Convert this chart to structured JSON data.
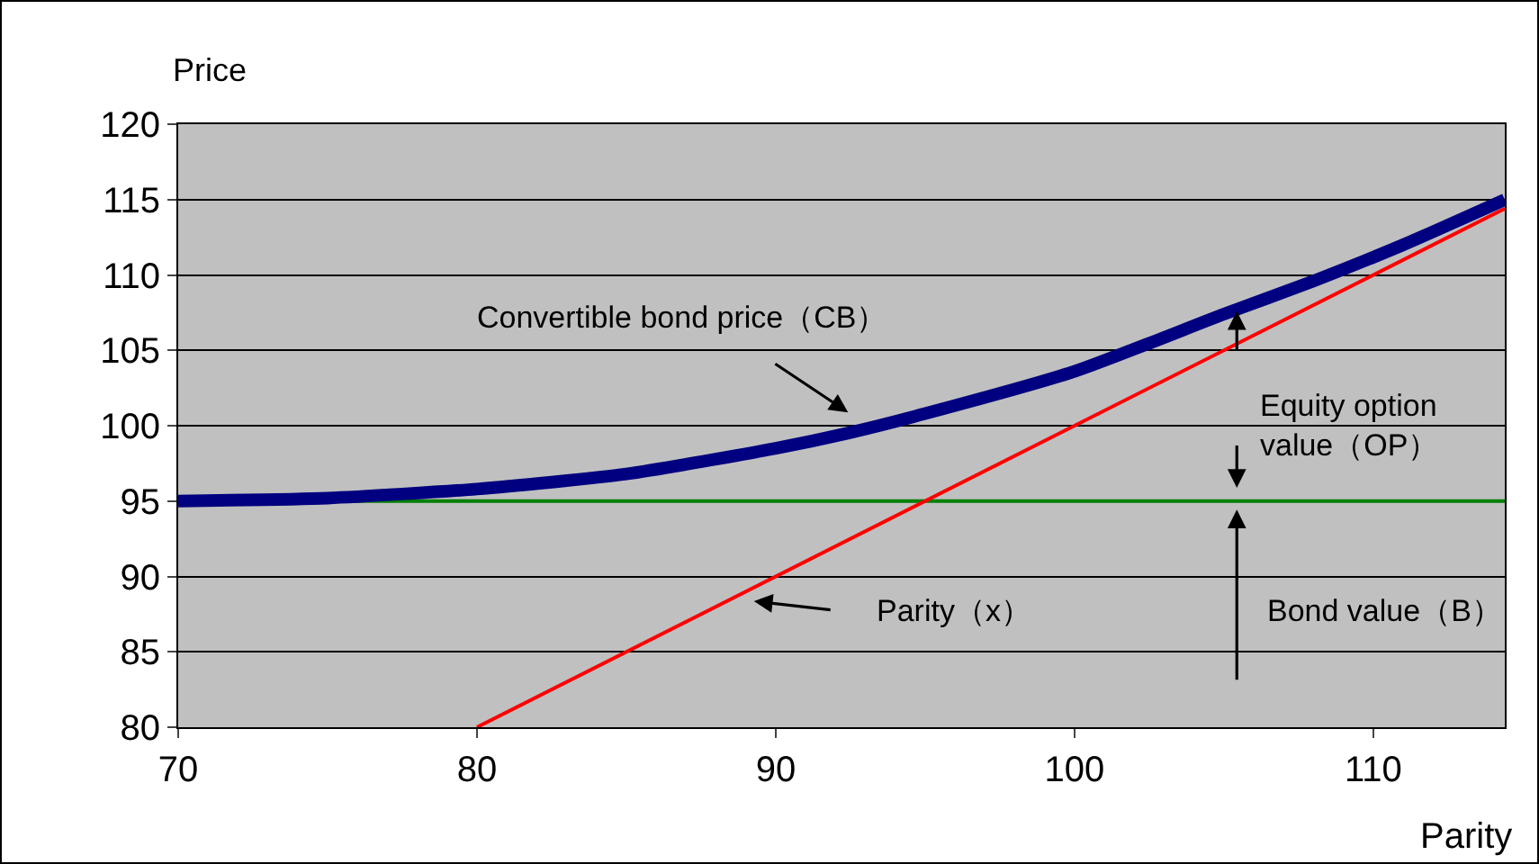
{
  "chart_data": {
    "type": "line",
    "xlabel": "Parity",
    "ylabel": "Price",
    "xlim": [
      70,
      114.4
    ],
    "xticks": [
      70,
      80,
      90,
      100,
      110
    ],
    "ylim": [
      80,
      120
    ],
    "yticks": [
      80,
      85,
      90,
      95,
      100,
      105,
      110,
      115,
      120
    ],
    "grid": "y",
    "marker": "none",
    "line_style": "solid",
    "series": [
      {
        "color": "#008000",
        "x": [
          70,
          114.4
        ],
        "values": [
          95,
          95
        ]
      },
      {
        "color": "#ff0000",
        "x": [
          80,
          114.4
        ],
        "values": [
          80,
          114.4
        ]
      },
      {
        "color": "#000080",
        "x": [
          70,
          75,
          80,
          85,
          90,
          92.4,
          95,
          100,
          105,
          108,
          111,
          114.4
        ],
        "values": [
          95,
          95.2,
          95.8,
          96.8,
          98.5,
          99.5,
          100.8,
          103.6,
          107.4,
          109.6,
          112,
          115
        ]
      }
    ],
    "annotations": [
      "Convertible bond price（CB）",
      "Parity（x）",
      "Equity option\nvalue（OP）",
      "Bond value（B）"
    ]
  }
}
